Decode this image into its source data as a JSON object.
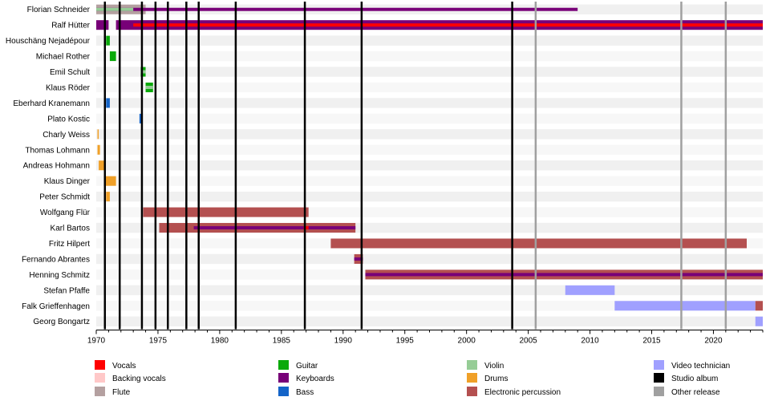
{
  "chart_data": {
    "type": "timeline",
    "title": "",
    "xlabel": "",
    "ylabel": "",
    "xlim": [
      1970,
      2024
    ],
    "x_ticks": [
      1970,
      1975,
      1980,
      1985,
      1990,
      1995,
      2000,
      2005,
      2010,
      2015,
      2020
    ],
    "grid": false,
    "legend_position": "bottom",
    "colors": {
      "Vocals": "#ff0000",
      "Backing vocals": "#ffc8c8",
      "Flute": "#b4a0a0",
      "Guitar": "#0aaa0a",
      "Keyboards": "#780078",
      "Bass": "#1464c8",
      "Violin": "#96cd96",
      "Drums": "#f0a028",
      "Electronic percussion": "#b45050",
      "Video technician": "#a0a0ff",
      "Studio album": "#000000",
      "Other release": "#a0a0a0"
    },
    "legend": [
      "Vocals",
      "Backing vocals",
      "Flute",
      "Guitar",
      "Keyboards",
      "Bass",
      "Violin",
      "Drums",
      "Electronic percussion",
      "Video technician",
      "Studio album",
      "Other release"
    ],
    "members": [
      {
        "name": "Florian Schneider",
        "periods": [
          {
            "role": "Flute",
            "start": 1970.0,
            "end": 1974.0
          },
          {
            "role": "Keyboards",
            "start": 1970.0,
            "end": 2009.0,
            "thin": true
          },
          {
            "role": "Violin",
            "start": 1970.0,
            "end": 1973.0,
            "thin": true
          }
        ]
      },
      {
        "name": "Ralf Hütter",
        "periods": [
          {
            "role": "Keyboards",
            "start": 1970.0,
            "end": 1971.0
          },
          {
            "role": "Keyboards",
            "start": 1971.6,
            "end": 2024.0
          },
          {
            "role": "Vocals",
            "start": 1973.0,
            "end": 2024.0,
            "thin": true
          }
        ]
      },
      {
        "name": "Houschäng Nejadépour",
        "periods": [
          {
            "role": "Guitar",
            "start": 1970.8,
            "end": 1971.1
          }
        ]
      },
      {
        "name": "Michael Rother",
        "periods": [
          {
            "role": "Guitar",
            "start": 1971.1,
            "end": 1971.6
          }
        ]
      },
      {
        "name": "Emil Schult",
        "periods": [
          {
            "role": "Guitar",
            "start": 1973.6,
            "end": 1974.0
          },
          {
            "role": "Violin",
            "start": 1973.6,
            "end": 1974.0,
            "thin": true
          }
        ]
      },
      {
        "name": "Klaus Röder",
        "periods": [
          {
            "role": "Guitar",
            "start": 1974.0,
            "end": 1974.6
          },
          {
            "role": "Violin",
            "start": 1974.0,
            "end": 1974.6,
            "thin": true
          }
        ]
      },
      {
        "name": "Eberhard Kranemann",
        "periods": [
          {
            "role": "Bass",
            "start": 1970.8,
            "end": 1971.1
          }
        ]
      },
      {
        "name": "Plato Kostic",
        "periods": [
          {
            "role": "Bass",
            "start": 1973.5,
            "end": 1973.7
          }
        ]
      },
      {
        "name": "Charly Weiss",
        "periods": [
          {
            "role": "Drums",
            "start": 1970.1,
            "end": 1970.2
          }
        ]
      },
      {
        "name": "Thomas Lohmann",
        "periods": [
          {
            "role": "Drums",
            "start": 1970.1,
            "end": 1970.3
          }
        ]
      },
      {
        "name": "Andreas Hohmann",
        "periods": [
          {
            "role": "Drums",
            "start": 1970.2,
            "end": 1970.7
          }
        ]
      },
      {
        "name": "Klaus Dinger",
        "periods": [
          {
            "role": "Drums",
            "start": 1970.7,
            "end": 1971.6
          }
        ]
      },
      {
        "name": "Peter Schmidt",
        "periods": [
          {
            "role": "Drums",
            "start": 1970.8,
            "end": 1971.1
          }
        ]
      },
      {
        "name": "Wolfgang Flür",
        "periods": [
          {
            "role": "Electronic percussion",
            "start": 1973.8,
            "end": 1987.2
          }
        ]
      },
      {
        "name": "Karl Bartos",
        "periods": [
          {
            "role": "Electronic percussion",
            "start": 1975.1,
            "end": 1991.0
          },
          {
            "role": "Keyboards",
            "start": 1977.9,
            "end": 1991.0,
            "thin": true
          },
          {
            "role": "Vocals",
            "start": 1986.8,
            "end": 1987.2,
            "thin": true
          }
        ]
      },
      {
        "name": "Fritz Hilpert",
        "periods": [
          {
            "role": "Electronic percussion",
            "start": 1989.0,
            "end": 2022.7
          }
        ]
      },
      {
        "name": "Fernando Abrantes",
        "periods": [
          {
            "role": "Electronic percussion",
            "start": 1990.9,
            "end": 1991.6
          },
          {
            "role": "Keyboards",
            "start": 1990.9,
            "end": 1991.6,
            "thin": true
          }
        ]
      },
      {
        "name": "Henning Schmitz",
        "periods": [
          {
            "role": "Electronic percussion",
            "start": 1991.8,
            "end": 2024.0
          },
          {
            "role": "Keyboards",
            "start": 1991.8,
            "end": 2024.0,
            "thin": true
          }
        ]
      },
      {
        "name": "Stefan Pfaffe",
        "periods": [
          {
            "role": "Video technician",
            "start": 2008.0,
            "end": 2012.0
          }
        ]
      },
      {
        "name": "Falk Grieffenhagen",
        "periods": [
          {
            "role": "Video technician",
            "start": 2012.0,
            "end": 2023.4
          },
          {
            "role": "Electronic percussion",
            "start": 2023.4,
            "end": 2024.0
          }
        ]
      },
      {
        "name": "Georg Bongartz",
        "periods": [
          {
            "role": "Video technician",
            "start": 2023.4,
            "end": 2024.0
          }
        ]
      }
    ],
    "events": [
      {
        "type": "Studio album",
        "year": 1970.7
      },
      {
        "type": "Studio album",
        "year": 1971.9
      },
      {
        "type": "Studio album",
        "year": 1973.7
      },
      {
        "type": "Studio album",
        "year": 1974.8
      },
      {
        "type": "Studio album",
        "year": 1975.8
      },
      {
        "type": "Studio album",
        "year": 1977.3
      },
      {
        "type": "Studio album",
        "year": 1978.3
      },
      {
        "type": "Studio album",
        "year": 1981.3
      },
      {
        "type": "Studio album",
        "year": 1986.9
      },
      {
        "type": "Studio album",
        "year": 1991.5
      },
      {
        "type": "Studio album",
        "year": 2003.7
      },
      {
        "type": "Other release",
        "year": 2005.6
      },
      {
        "type": "Other release",
        "year": 2017.4
      },
      {
        "type": "Other release",
        "year": 2021.0
      }
    ]
  }
}
